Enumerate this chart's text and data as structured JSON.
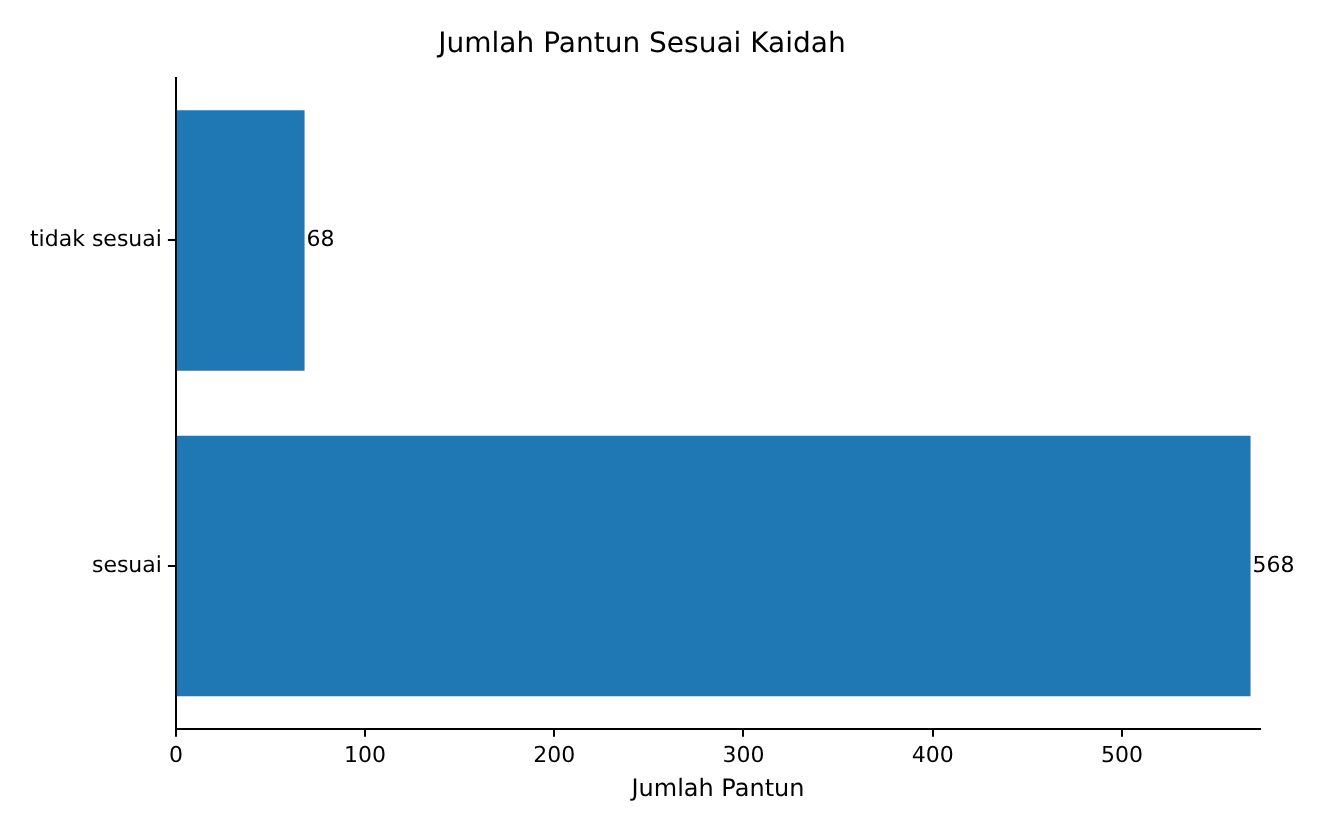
{
  "chart_data": {
    "type": "bar",
    "orientation": "horizontal",
    "title": "Jumlah Pantun Sesuai Kaidah",
    "xlabel": "Jumlah Pantun",
    "categories": [
      "tidak sesuai",
      "sesuai"
    ],
    "values": [
      68,
      568
    ],
    "color": "#1f77b4",
    "xlim": [
      0,
      573
    ],
    "xticks": [
      0,
      100,
      200,
      300,
      400,
      500
    ],
    "grid": false,
    "legend": false,
    "data_labels": true
  }
}
